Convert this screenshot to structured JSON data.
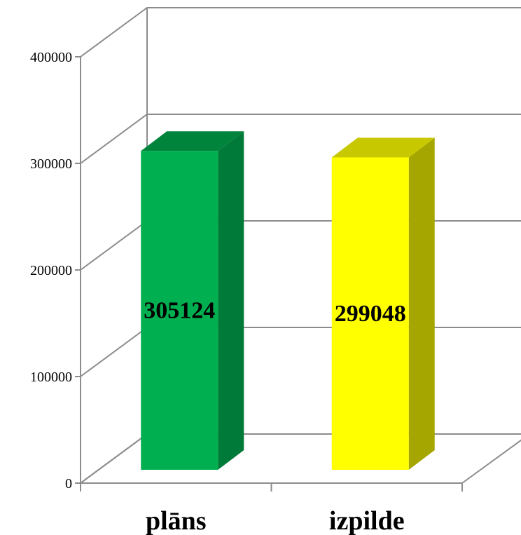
{
  "chart_data": {
    "type": "bar",
    "categories": [
      "plāns",
      "izpilde"
    ],
    "values": [
      305124,
      299048
    ],
    "data_labels": [
      "305124",
      "299048"
    ],
    "title": "",
    "xlabel": "",
    "ylabel": "",
    "ylim": [
      0,
      400000
    ],
    "yticks": [
      0,
      100000,
      200000,
      300000,
      400000
    ],
    "ytick_labels": [
      "0",
      "100000",
      "200000",
      "300000",
      "400000"
    ],
    "grid": true,
    "legend": "none",
    "style": "3d-column",
    "colors": {
      "bar_front": [
        "#00b050",
        "#ffff00"
      ],
      "bar_side": [
        "#007a38",
        "#a6a600"
      ],
      "bar_top": [
        "#00843c",
        "#c8c800"
      ],
      "grid": "#8c8c8c"
    }
  }
}
